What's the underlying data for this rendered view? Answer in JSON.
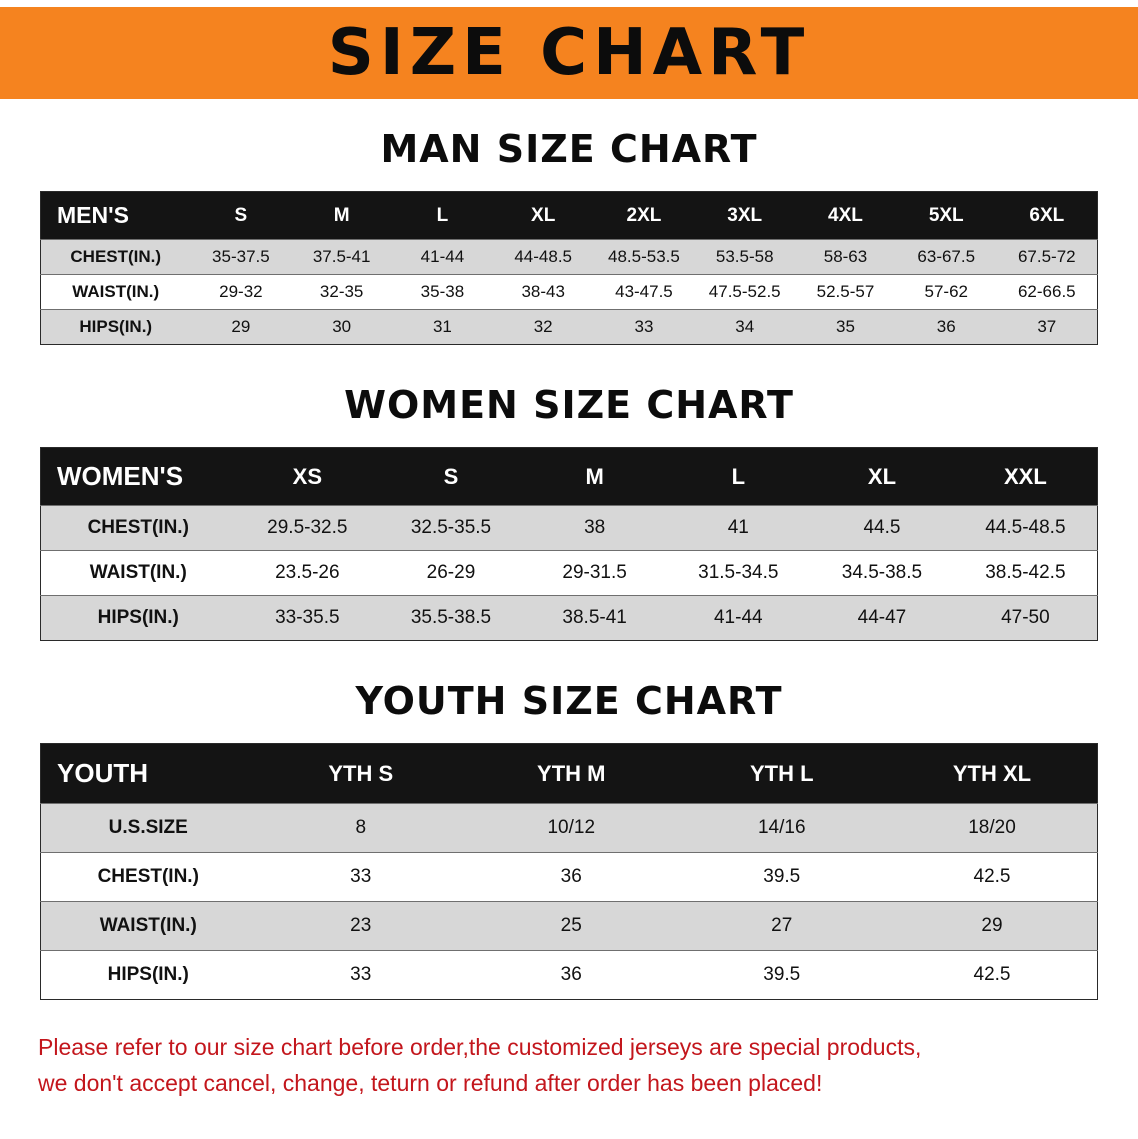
{
  "banner": {
    "title": "SIZE CHART"
  },
  "sections": [
    {
      "heading": "MAN SIZE CHART",
      "table": {
        "header": [
          "MEN'S",
          "S",
          "M",
          "L",
          "XL",
          "2XL",
          "3XL",
          "4XL",
          "5XL",
          "6XL"
        ],
        "rows": [
          [
            "CHEST(IN.)",
            "35-37.5",
            "37.5-41",
            "41-44",
            "44-48.5",
            "48.5-53.5",
            "53.5-58",
            "58-63",
            "63-67.5",
            "67.5-72"
          ],
          [
            "WAIST(IN.)",
            "29-32",
            "32-35",
            "35-38",
            "38-43",
            "43-47.5",
            "47.5-52.5",
            "52.5-57",
            "57-62",
            "62-66.5"
          ],
          [
            "HIPS(IN.)",
            "29",
            "30",
            "31",
            "32",
            "33",
            "34",
            "35",
            "36",
            "37"
          ]
        ]
      }
    },
    {
      "heading": "WOMEN SIZE CHART",
      "table": {
        "header": [
          "WOMEN'S",
          "XS",
          "S",
          "M",
          "L",
          "XL",
          "XXL"
        ],
        "rows": [
          [
            "CHEST(IN.)",
            "29.5-32.5",
            "32.5-35.5",
            "38",
            "41",
            "44.5",
            "44.5-48.5"
          ],
          [
            "WAIST(IN.)",
            "23.5-26",
            "26-29",
            "29-31.5",
            "31.5-34.5",
            "34.5-38.5",
            "38.5-42.5"
          ],
          [
            "HIPS(IN.)",
            "33-35.5",
            "35.5-38.5",
            "38.5-41",
            "41-44",
            "44-47",
            "47-50"
          ]
        ]
      }
    },
    {
      "heading": "YOUTH SIZE CHART",
      "table": {
        "header": [
          "YOUTH",
          "YTH S",
          "YTH M",
          "YTH L",
          "YTH XL"
        ],
        "rows": [
          [
            "U.S.SIZE",
            "8",
            "10/12",
            "14/16",
            "18/20"
          ],
          [
            "CHEST(IN.)",
            "33",
            "36",
            "39.5",
            "42.5"
          ],
          [
            "WAIST(IN.)",
            "23",
            "25",
            "27",
            "29"
          ],
          [
            "HIPS(IN.)",
            "33",
            "36",
            "39.5",
            "42.5"
          ]
        ]
      }
    }
  ],
  "footer": {
    "line1": "Please refer to our size chart before order,the customized jerseys are special products,",
    "line2": "we don't accept cancel, change, teturn or refund after order has been placed!"
  },
  "colors": {
    "banner_orange": "#F5831F",
    "header_black": "#141414",
    "row_gray": "#d7d7d7",
    "disclaimer_red": "#C3161C"
  }
}
